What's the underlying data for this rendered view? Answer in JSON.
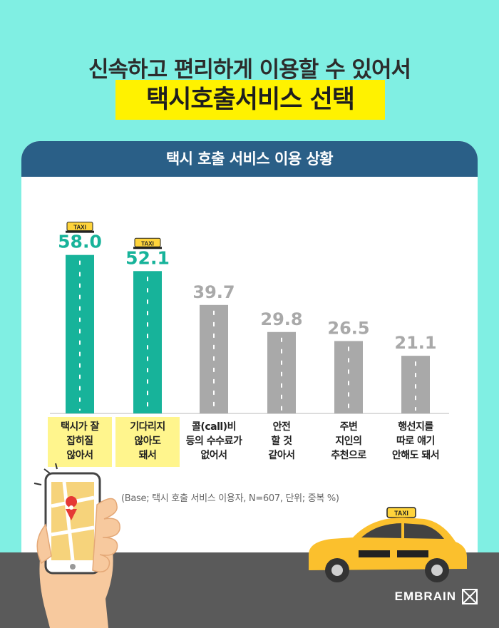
{
  "header": {
    "line1": "신속하고 편리하게 이용할 수 있어서",
    "line2": "택시호출서비스 선택"
  },
  "panel": {
    "title": "택시 호출 서비스 이용 상황"
  },
  "chart_data": {
    "type": "bar",
    "title": "택시 호출 서비스 이용 상황",
    "categories": [
      "택시가 잘 잡히질 않아서",
      "기다리지 않아도 돼서",
      "콜(call)비 등의 수수료가 없어서",
      "안전 할 것 같아서",
      "주변 지인의 추천으로",
      "행선지를 따로 얘기 안해도 돼서"
    ],
    "category_lines": [
      [
        "택시가 잘",
        "잡히질",
        "않아서"
      ],
      [
        "기다리지",
        "않아도",
        "돼서"
      ],
      [
        "콜(call)비",
        "등의 수수료가",
        "없어서"
      ],
      [
        "안전",
        "할 것",
        "같아서"
      ],
      [
        "주변",
        "지인의",
        "추천으로"
      ],
      [
        "행선지를",
        "따로 얘기",
        "안해도 돼서"
      ]
    ],
    "values": [
      58.0,
      52.1,
      39.7,
      29.8,
      26.5,
      21.1
    ],
    "value_labels": [
      "58.0",
      "52.1",
      "39.7",
      "29.8",
      "26.5",
      "21.1"
    ],
    "highlighted": [
      true,
      true,
      false,
      false,
      false,
      false
    ],
    "colors": {
      "highlight": "#17b39a",
      "normal": "#a9a9a9",
      "label_highlight_bg": "#fff58d"
    },
    "ylim": [
      0,
      60
    ]
  },
  "note": "(Base; 택시 호출 서비스 이용자, N=607, 단위; 중복 %)",
  "taxi_sign": "TAXI",
  "brand": "EMBRAIN",
  "colors": {
    "background": "#80efe3",
    "title_bar": "#2a5f87",
    "highlight_box": "#fff200",
    "ground": "#5a5a5a"
  }
}
